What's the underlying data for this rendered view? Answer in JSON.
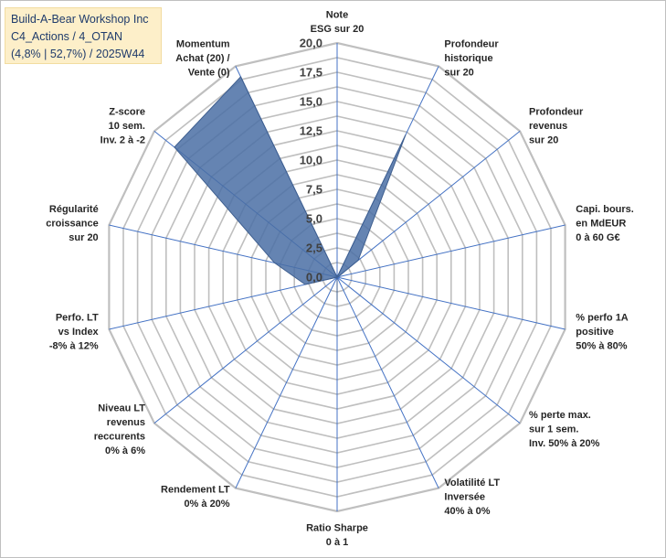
{
  "title": {
    "line1": "Build-A-Bear Workshop Inc",
    "line2": "C4_Actions / 4_OTAN",
    "line3": "(4,8% | 52,7%) / 2025W44"
  },
  "colors": {
    "grid": "#bfbfbf",
    "spoke": "#4472c4",
    "fill": "#4a6fa5",
    "stroke": "#3f5f8f",
    "text": "#262626"
  },
  "chart_data": {
    "type": "radar",
    "rmin": 0,
    "rmax": 20,
    "ticks": [
      "0,0",
      "2,5",
      "5,0",
      "7,5",
      "10,0",
      "12,5",
      "15,0",
      "17,5",
      "20,0"
    ],
    "tick_values": [
      0,
      2.5,
      5,
      7.5,
      10,
      12.5,
      15,
      17.5,
      20
    ],
    "axes": [
      {
        "label": [
          "Note",
          "ESG sur 20"
        ],
        "value": 0
      },
      {
        "label": [
          "Profondeur",
          "historique",
          "sur 20"
        ],
        "value": 13.5
      },
      {
        "label": [
          "Profondeur",
          "revenus",
          "sur 20"
        ],
        "value": 2.3
      },
      {
        "label": [
          "Capi. bours.",
          "en MdEUR",
          "0 à 60 G€"
        ],
        "value": 0.1
      },
      {
        "label": [
          "% perfo 1A",
          "positive",
          "50% à 80%"
        ],
        "value": 0
      },
      {
        "label": [
          "% perte max.",
          "sur 1 sem.",
          "Inv. 50% à 20%"
        ],
        "value": 0
      },
      {
        "label": [
          "Volatilité LT",
          "Inversée",
          "40% à 0%"
        ],
        "value": 0
      },
      {
        "label": [
          "Ratio Sharpe",
          "0 à 1"
        ],
        "value": 2.0
      },
      {
        "label": [
          "Rendement LT",
          "0% à 20%"
        ],
        "value": 0
      },
      {
        "label": [
          "Niveau LT",
          "revenus",
          "reccurents",
          "0% à 6%"
        ],
        "value": 0
      },
      {
        "label": [
          "Perfo. LT",
          "vs Index",
          "-8% à 12%"
        ],
        "value": 2.8
      },
      {
        "label": [
          "Régularité",
          "croissance",
          "sur 20"
        ],
        "value": 5.5
      },
      {
        "label": [
          "Z-score",
          "10 sem.",
          "Inv. 2 à -2"
        ],
        "value": 17.8
      },
      {
        "label": [
          "Momentum",
          "Achat (20) /",
          "Vente (0)"
        ],
        "value": 19.0
      }
    ]
  }
}
